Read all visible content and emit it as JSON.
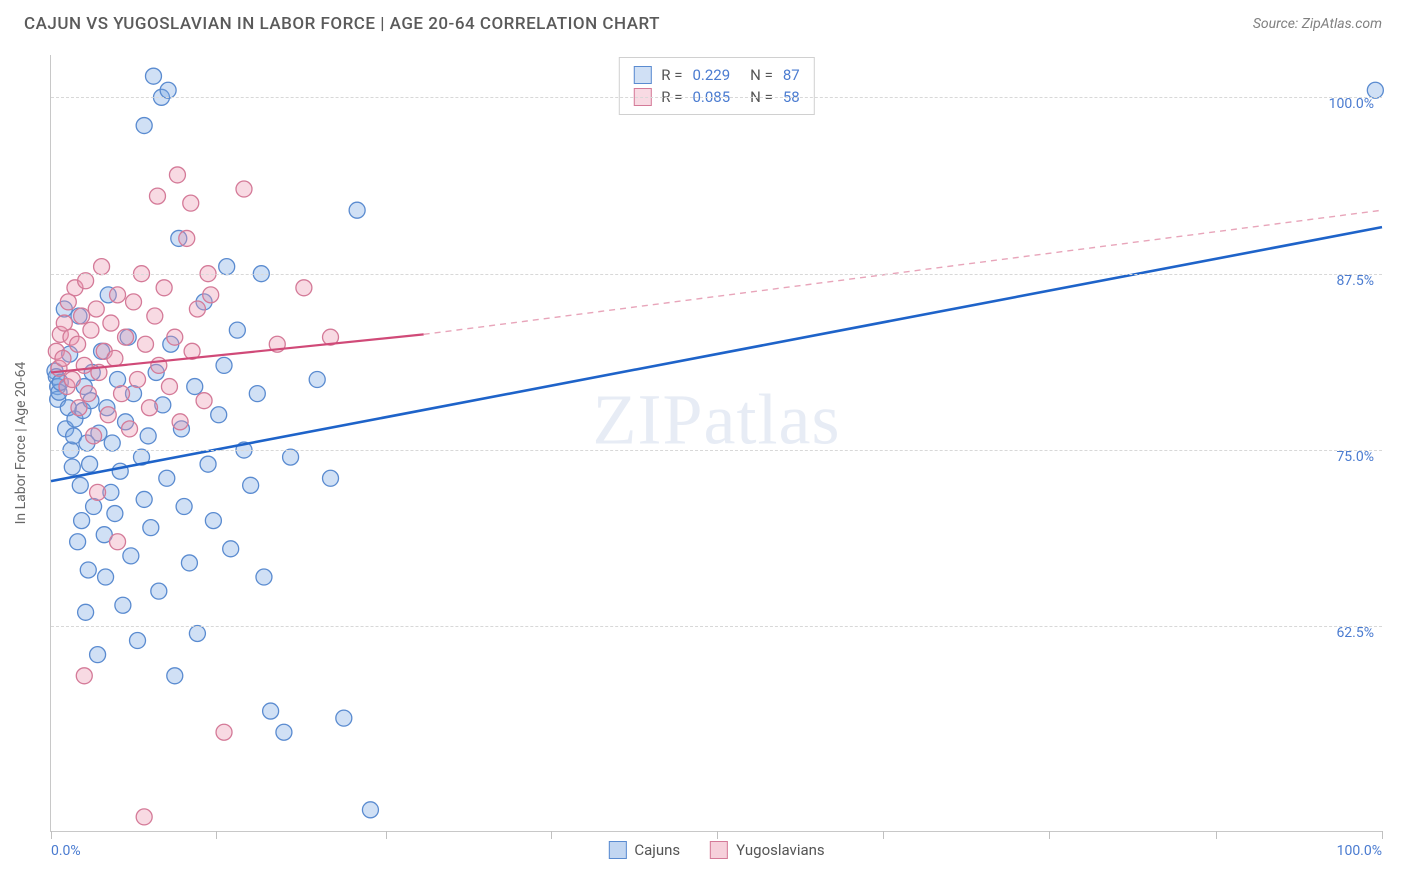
{
  "title": "CAJUN VS YUGOSLAVIAN IN LABOR FORCE | AGE 20-64 CORRELATION CHART",
  "source": "Source: ZipAtlas.com",
  "y_axis_label": "In Labor Force | Age 20-64",
  "watermark_a": "ZIP",
  "watermark_b": "atlas",
  "chart": {
    "type": "scatter",
    "xlim": [
      0,
      100
    ],
    "ylim": [
      48,
      103
    ],
    "x_tick_positions": [
      0,
      12.4,
      25.2,
      37.6,
      50,
      62.5,
      75,
      87.5,
      100
    ],
    "x_tick_labels": {
      "0": "0.0%",
      "100": "100.0%"
    },
    "y_gridlines": [
      62.5,
      75,
      87.5,
      100
    ],
    "y_tick_labels": {
      "62.5": "62.5%",
      "75": "75.0%",
      "87.5": "87.5%",
      "100": "100.0%"
    },
    "grid_color": "#d8d8d8",
    "axis_color": "#c8c8c8",
    "tick_label_color": "#4a7bd0",
    "marker_radius": 8,
    "marker_stroke_width": 1.3,
    "series": [
      {
        "name": "Cajuns",
        "fill": "rgba(120,165,225,0.35)",
        "stroke": "#5a8bd0",
        "R": "0.229",
        "N": "87",
        "trend": {
          "x1": 0,
          "y1": 72.8,
          "x2": 100,
          "y2": 90.8,
          "color": "#1e63c9",
          "width": 2.6,
          "dash": "0"
        },
        "points": [
          [
            0.3,
            80.6
          ],
          [
            0.4,
            80.2
          ],
          [
            0.5,
            79.5
          ],
          [
            0.5,
            78.6
          ],
          [
            0.6,
            79.1
          ],
          [
            0.7,
            79.8
          ],
          [
            1.0,
            85.0
          ],
          [
            1.1,
            76.5
          ],
          [
            1.3,
            78.0
          ],
          [
            1.4,
            81.8
          ],
          [
            1.5,
            75.0
          ],
          [
            1.6,
            73.8
          ],
          [
            1.7,
            76.0
          ],
          [
            1.8,
            77.2
          ],
          [
            2.0,
            68.5
          ],
          [
            2.1,
            84.5
          ],
          [
            2.2,
            72.5
          ],
          [
            2.3,
            70.0
          ],
          [
            2.4,
            77.8
          ],
          [
            2.5,
            79.5
          ],
          [
            2.6,
            63.5
          ],
          [
            2.7,
            75.5
          ],
          [
            2.8,
            66.5
          ],
          [
            2.9,
            74.0
          ],
          [
            3.0,
            78.5
          ],
          [
            3.1,
            80.5
          ],
          [
            3.2,
            71.0
          ],
          [
            3.5,
            60.5
          ],
          [
            3.6,
            76.2
          ],
          [
            3.8,
            82.0
          ],
          [
            4.0,
            69.0
          ],
          [
            4.1,
            66.0
          ],
          [
            4.2,
            78.0
          ],
          [
            4.3,
            86.0
          ],
          [
            4.5,
            72.0
          ],
          [
            4.6,
            75.5
          ],
          [
            4.8,
            70.5
          ],
          [
            5.0,
            80.0
          ],
          [
            5.2,
            73.5
          ],
          [
            5.4,
            64.0
          ],
          [
            5.6,
            77.0
          ],
          [
            5.8,
            83.0
          ],
          [
            6.0,
            67.5
          ],
          [
            6.2,
            79.0
          ],
          [
            6.5,
            61.5
          ],
          [
            6.8,
            74.5
          ],
          [
            7.0,
            71.5
          ],
          [
            7.3,
            76.0
          ],
          [
            7.5,
            69.5
          ],
          [
            7.9,
            80.5
          ],
          [
            8.1,
            65.0
          ],
          [
            8.4,
            78.2
          ],
          [
            8.7,
            73.0
          ],
          [
            9.0,
            82.5
          ],
          [
            9.3,
            59.0
          ],
          [
            9.6,
            90.0
          ],
          [
            9.8,
            76.5
          ],
          [
            10.0,
            71.0
          ],
          [
            10.4,
            67.0
          ],
          [
            10.8,
            79.5
          ],
          [
            11.0,
            62.0
          ],
          [
            11.5,
            85.5
          ],
          [
            11.8,
            74.0
          ],
          [
            12.2,
            70.0
          ],
          [
            12.6,
            77.5
          ],
          [
            13.0,
            81.0
          ],
          [
            13.5,
            68.0
          ],
          [
            14.0,
            83.5
          ],
          [
            7.7,
            101.5
          ],
          [
            8.3,
            100.0
          ],
          [
            7.0,
            98.0
          ],
          [
            14.5,
            75.0
          ],
          [
            15.0,
            72.5
          ],
          [
            15.5,
            79.0
          ],
          [
            16.0,
            66.0
          ],
          [
            16.5,
            56.5
          ],
          [
            17.5,
            55.0
          ],
          [
            18.0,
            74.5
          ],
          [
            20.0,
            80.0
          ],
          [
            21.0,
            73.0
          ],
          [
            22.0,
            56.0
          ],
          [
            24.0,
            49.5
          ],
          [
            23.0,
            92.0
          ],
          [
            99.5,
            100.5
          ],
          [
            15.8,
            87.5
          ],
          [
            13.2,
            88.0
          ],
          [
            8.8,
            100.5
          ]
        ]
      },
      {
        "name": "Yugoslavians",
        "fill": "rgba(235,150,175,0.35)",
        "stroke": "#d47a98",
        "R": "0.085",
        "N": "58",
        "trend_solid": {
          "x1": 0,
          "y1": 80.5,
          "x2": 28,
          "y2": 83.2,
          "color": "#d04a78",
          "width": 2.2
        },
        "trend_dash": {
          "x1": 28,
          "y1": 83.2,
          "x2": 100,
          "y2": 92.0,
          "color": "#e8a5ba",
          "width": 1.4,
          "dash": "6,5"
        },
        "points": [
          [
            0.4,
            82.0
          ],
          [
            0.6,
            80.8
          ],
          [
            0.7,
            83.2
          ],
          [
            0.9,
            81.5
          ],
          [
            1.0,
            84.0
          ],
          [
            1.2,
            79.5
          ],
          [
            1.3,
            85.5
          ],
          [
            1.5,
            83.0
          ],
          [
            1.6,
            80.0
          ],
          [
            1.8,
            86.5
          ],
          [
            2.0,
            82.5
          ],
          [
            2.1,
            78.0
          ],
          [
            2.3,
            84.5
          ],
          [
            2.5,
            81.0
          ],
          [
            2.6,
            87.0
          ],
          [
            2.8,
            79.0
          ],
          [
            3.0,
            83.5
          ],
          [
            3.2,
            76.0
          ],
          [
            3.4,
            85.0
          ],
          [
            3.6,
            80.5
          ],
          [
            3.8,
            88.0
          ],
          [
            4.0,
            82.0
          ],
          [
            4.3,
            77.5
          ],
          [
            4.5,
            84.0
          ],
          [
            4.8,
            81.5
          ],
          [
            5.0,
            86.0
          ],
          [
            5.3,
            79.0
          ],
          [
            5.6,
            83.0
          ],
          [
            5.9,
            76.5
          ],
          [
            6.2,
            85.5
          ],
          [
            6.5,
            80.0
          ],
          [
            6.8,
            87.5
          ],
          [
            7.1,
            82.5
          ],
          [
            7.4,
            78.0
          ],
          [
            7.8,
            84.5
          ],
          [
            8.1,
            81.0
          ],
          [
            8.5,
            86.5
          ],
          [
            8.9,
            79.5
          ],
          [
            9.3,
            83.0
          ],
          [
            9.7,
            77.0
          ],
          [
            10.2,
            90.0
          ],
          [
            10.6,
            82.0
          ],
          [
            11.0,
            85.0
          ],
          [
            11.5,
            78.5
          ],
          [
            12.0,
            86.0
          ],
          [
            8.0,
            93.0
          ],
          [
            9.5,
            94.5
          ],
          [
            10.5,
            92.5
          ],
          [
            11.8,
            87.5
          ],
          [
            14.5,
            93.5
          ],
          [
            17.0,
            82.5
          ],
          [
            19.0,
            86.5
          ],
          [
            21.0,
            83.0
          ],
          [
            13.0,
            55.0
          ],
          [
            3.5,
            72.0
          ],
          [
            5.0,
            68.5
          ],
          [
            7.0,
            49.0
          ],
          [
            2.5,
            59.0
          ]
        ]
      }
    ]
  },
  "legend_bottom": [
    {
      "label": "Cajuns",
      "fill": "rgba(120,165,225,0.45)",
      "stroke": "#5a8bd0"
    },
    {
      "label": "Yugoslavians",
      "fill": "rgba(235,150,175,0.45)",
      "stroke": "#d47a98"
    }
  ]
}
